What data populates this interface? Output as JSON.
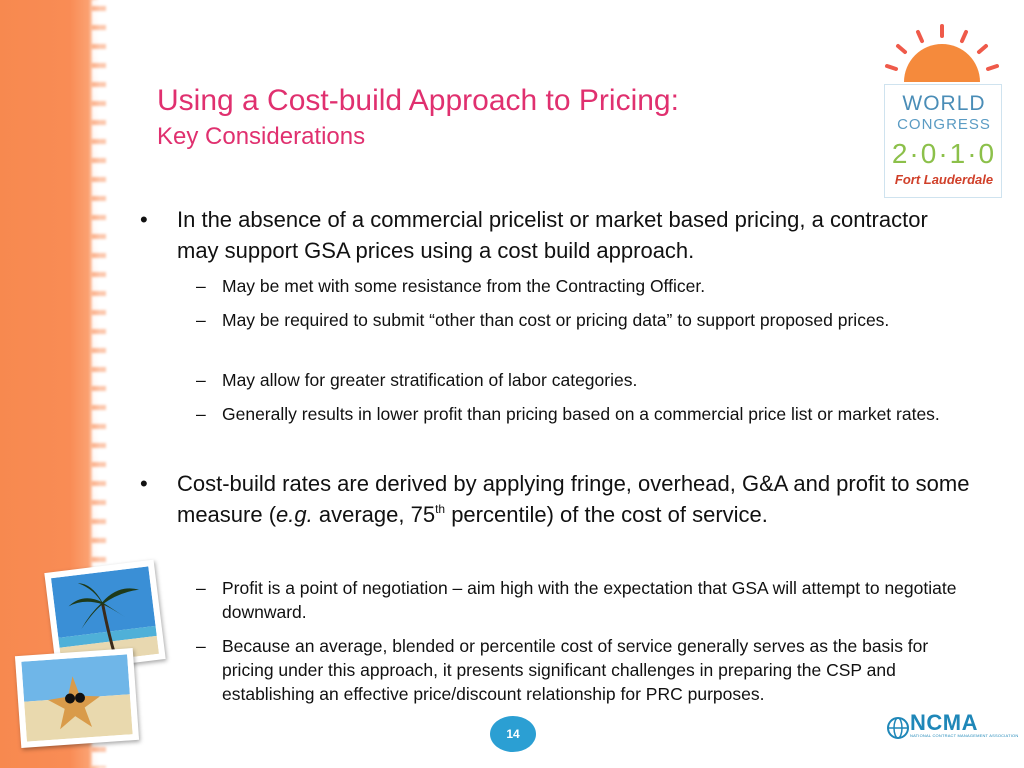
{
  "slide": {
    "title": "Using a Cost-build Approach to Pricing:",
    "subtitle": "Key Considerations",
    "page_number": "14"
  },
  "logo": {
    "line1": "WORLD",
    "line2": "CONGRESS",
    "line3": "2·0·1·0",
    "line4": "Fort Lauderdale"
  },
  "bullets": [
    {
      "text": "In the absence of a commercial pricelist or market based pricing, a contractor may support GSA prices using a cost build approach.",
      "subs": [
        "May be met with some resistance from the Contracting Officer.",
        "May be required to submit “other than cost or pricing data” to support proposed prices.",
        "May allow for greater stratification of labor categories.",
        "Generally results in lower profit than pricing based on a commercial price list or market rates."
      ]
    },
    {
      "text_a": "Cost-build rates are derived by applying fringe, overhead, G&A and profit to some measure (",
      "text_em": "e.g.",
      "text_b": " average, 75",
      "text_sup": "th",
      "text_c": " percentile) of the cost of service.",
      "subs": [
        "Profit is a point of negotiation – aim high with the expectation that GSA will attempt to negotiate downward.",
        "Because an average, blended or percentile cost of service generally serves as the basis for pricing under this approach, it presents significant challenges in preparing the CSP and establishing an effective price/discount relationship for PRC purposes."
      ]
    }
  ],
  "markers": {
    "bullet": "•",
    "dash": "–"
  },
  "footer": {
    "org": "NCMA",
    "org_full": "NATIONAL CONTRACT MANAGEMENT ASSOCIATION"
  },
  "colors": {
    "title": "#e0306f",
    "band": "#f98c55",
    "badge": "#2b9fd3",
    "ncma": "#1f87b8"
  }
}
